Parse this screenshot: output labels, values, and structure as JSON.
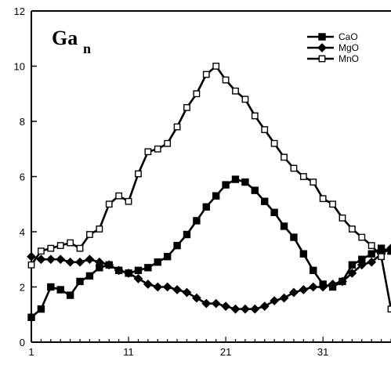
{
  "chart_data": {
    "type": "line",
    "title_main": "Ga",
    "title_sub": "n",
    "xlim": [
      1,
      38
    ],
    "ylim": [
      0,
      12
    ],
    "x_ticks": [
      1,
      11,
      21,
      31
    ],
    "y_ticks": [
      0,
      2,
      4,
      6,
      8,
      10,
      12
    ],
    "x_tick_labels": [
      "1",
      "11",
      "21",
      "31"
    ],
    "y_tick_labels": [
      "0",
      "2",
      "4",
      "6",
      "8",
      "10",
      "12"
    ],
    "grid": false,
    "legend_position": "top-right",
    "x": [
      1,
      2,
      3,
      4,
      5,
      6,
      7,
      8,
      9,
      10,
      11,
      12,
      13,
      14,
      15,
      16,
      17,
      18,
      19,
      20,
      21,
      22,
      23,
      24,
      25,
      26,
      27,
      28,
      29,
      30,
      31,
      32,
      33,
      34,
      35,
      36,
      37,
      38
    ],
    "series": [
      {
        "name": "CaO",
        "marker": "filled-square",
        "values": [
          0.9,
          1.2,
          2.0,
          1.9,
          1.7,
          2.2,
          2.4,
          2.7,
          2.8,
          2.6,
          2.5,
          2.6,
          2.7,
          2.9,
          3.1,
          3.5,
          3.9,
          4.4,
          4.9,
          5.3,
          5.7,
          5.9,
          5.8,
          5.5,
          5.1,
          4.7,
          4.2,
          3.8,
          3.2,
          2.6,
          2.1,
          2.0,
          2.2,
          2.8,
          3.0,
          3.2,
          3.4,
          3.3
        ]
      },
      {
        "name": "MgO",
        "marker": "filled-diamond",
        "values": [
          3.1,
          3.0,
          3.0,
          3.0,
          2.9,
          2.9,
          3.0,
          2.9,
          2.8,
          2.6,
          2.5,
          2.3,
          2.1,
          2.0,
          2.0,
          1.9,
          1.8,
          1.6,
          1.4,
          1.4,
          1.3,
          1.2,
          1.2,
          1.2,
          1.3,
          1.5,
          1.6,
          1.8,
          1.9,
          2.0,
          2.0,
          2.1,
          2.2,
          2.5,
          2.8,
          2.9,
          3.2,
          3.4
        ]
      },
      {
        "name": "MnO",
        "marker": "open-square",
        "values": [
          2.8,
          3.3,
          3.4,
          3.5,
          3.6,
          3.4,
          3.9,
          4.1,
          5.0,
          5.3,
          5.1,
          6.1,
          6.9,
          7.0,
          7.2,
          7.8,
          8.5,
          9.0,
          9.7,
          10.0,
          9.5,
          9.1,
          8.8,
          8.2,
          7.7,
          7.2,
          6.7,
          6.3,
          6.0,
          5.8,
          5.2,
          5.0,
          4.5,
          4.1,
          3.8,
          3.5,
          3.1,
          1.2
        ]
      }
    ]
  }
}
